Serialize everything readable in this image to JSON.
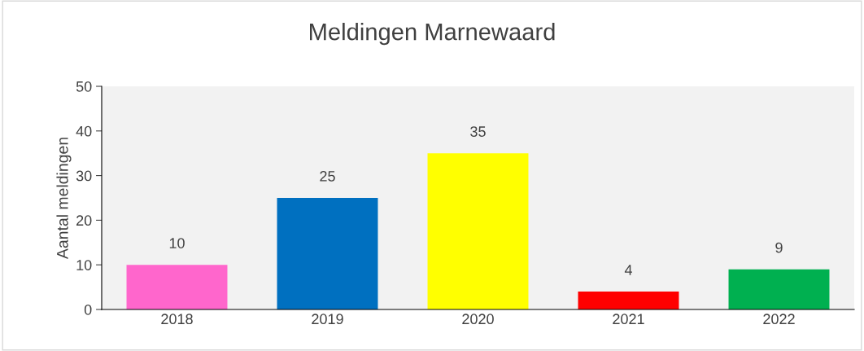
{
  "chart_data": {
    "type": "bar",
    "title": "Meldingen Marnewaard",
    "ylabel": "Aantal meldingen",
    "categories": [
      "2018",
      "2019",
      "2020",
      "2021",
      "2022"
    ],
    "values": [
      10,
      25,
      35,
      4,
      9
    ],
    "colors": [
      "#ff66cc",
      "#0070c0",
      "#ffff00",
      "#ff0000",
      "#00b050"
    ],
    "ylim": [
      0,
      50
    ],
    "yticks": [
      0,
      10,
      20,
      30,
      40,
      50
    ],
    "grid": false,
    "data_labels": true
  }
}
